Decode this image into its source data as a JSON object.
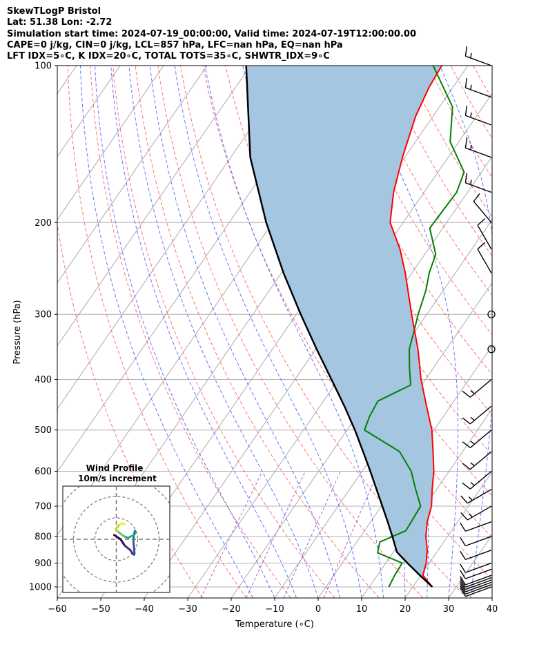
{
  "header": {
    "title": "SkewTLogP Bristol",
    "location": "Lat: 51.38   Lon: -2.72",
    "times": "Simulation start time: 2024-07-19_00:00:00, Valid time: 2024-07-19T12:00:00.00",
    "parcel": "CAPE=0 j/kg, CIN=0 j/kg, LCL=857 hPa, LFC=nan hPa, EQ=nan hPa",
    "indices": "LFT IDX=5∘C, K IDX=20∘C, TOTAL TOTS=35∘C, SHWTR_IDX=9∘C"
  },
  "colors": {
    "temperature": "#ff0000",
    "dewpoint": "#008000",
    "parcel": "#000000",
    "cape_fill": "#a4c6e0",
    "isotherm": "#aaaaaa",
    "dry_adiabat": "#ff5a5a",
    "moist_adiabat": "#4d5cff",
    "mixing_ratio": "#9b3fc4",
    "grid": "#b0b0b0"
  },
  "chart_data": [
    {
      "type": "line",
      "subtype": "skew-t log-p",
      "xlabel": "Temperature (∘C)",
      "ylabel": "Pressure (hPa)",
      "xlim": [
        -60,
        40
      ],
      "ylim": [
        1050,
        100
      ],
      "y_scale": "log",
      "x_ticks": [
        -60,
        -50,
        -40,
        -30,
        -20,
        -10,
        0,
        10,
        20,
        30,
        40
      ],
      "y_ticks": [
        100,
        200,
        300,
        400,
        500,
        600,
        700,
        800,
        900,
        1000
      ],
      "grid": true,
      "series": [
        {
          "key": "temperature",
          "pressure": [
            1000,
            950,
            900,
            850,
            800,
            750,
            700,
            650,
            600,
            550,
            500,
            450,
            400,
            350,
            300,
            250,
            225,
            200,
            175,
            150,
            125,
            110,
            100
          ],
          "temp_c": [
            24.5,
            20.5,
            19.3,
            17.5,
            15.0,
            13.0,
            11.5,
            9.0,
            6.5,
            3.2,
            -0.5,
            -5.5,
            -11.0,
            -16.5,
            -23.5,
            -31.5,
            -36.5,
            -43.0,
            -47.0,
            -50.5,
            -54.0,
            -55.5,
            -56.0
          ]
        },
        {
          "key": "dewpoint",
          "pressure": [
            1000,
            950,
            900,
            860,
            820,
            780,
            700,
            650,
            600,
            550,
            500,
            470,
            440,
            410,
            380,
            350,
            320,
            300,
            270,
            250,
            230,
            205,
            175,
            160,
            140,
            120,
            100
          ],
          "temp_c": [
            14.5,
            14.0,
            13.8,
            6.5,
            5.3,
            9.5,
            9.0,
            5.2,
            1.3,
            -4.5,
            -16.0,
            -17.0,
            -17.5,
            -12.5,
            -15.5,
            -18.5,
            -20.5,
            -22.0,
            -24.0,
            -26.0,
            -27.5,
            -33.0,
            -32.5,
            -34.0,
            -42.0,
            -47.0,
            -58.0
          ]
        },
        {
          "key": "parcel",
          "pressure": [
            1000,
            950,
            900,
            857,
            800,
            750,
            700,
            650,
            600,
            550,
            500,
            450,
            400,
            350,
            300,
            250,
            200,
            150,
            100
          ],
          "temp_c": [
            24.5,
            19.8,
            15.0,
            10.8,
            7.3,
            3.9,
            0.2,
            -3.8,
            -8.1,
            -12.9,
            -18.2,
            -24.4,
            -31.6,
            -39.8,
            -49.0,
            -59.5,
            -71.5,
            -85.5,
            -101.0
          ]
        }
      ],
      "wind_barbs": {
        "pressure": [
          1000,
          990,
          980,
          970,
          960,
          950,
          925,
          900,
          850,
          800,
          750,
          700,
          650,
          600,
          550,
          500,
          450,
          400,
          350,
          300,
          250,
          225,
          200,
          175,
          150,
          130,
          115,
          100
        ],
        "speed_kt": [
          10,
          10,
          10,
          10,
          10,
          10,
          10,
          10,
          10,
          10,
          10,
          15,
          15,
          15,
          15,
          15,
          15,
          15,
          0,
          0,
          10,
          10,
          10,
          15,
          15,
          15,
          15,
          15
        ],
        "direction_deg": [
          250,
          250,
          250,
          250,
          250,
          250,
          250,
          250,
          250,
          250,
          250,
          240,
          240,
          230,
          230,
          230,
          230,
          230,
          0,
          0,
          330,
          330,
          320,
          290,
          290,
          290,
          290,
          290
        ]
      }
    },
    {
      "type": "scatter",
      "subtype": "hodograph",
      "title": "Wind Profile",
      "subtitle": "10m/s increment",
      "range": [
        -25,
        25
      ],
      "ring_values": [
        10,
        20,
        30
      ],
      "u": [
        -1.0,
        2.0,
        4.0,
        6.5,
        7.5,
        8.2,
        8.5,
        8.3,
        8.0,
        8.1,
        8.5,
        8.7,
        9.0,
        8.8,
        8.3,
        7.8,
        5.5,
        4.5,
        3.5,
        2.5,
        1.5,
        0.5,
        -0.3,
        0.7,
        1.7,
        2.7,
        3.8
      ],
      "v": [
        2.0,
        0.0,
        -3.0,
        -5.0,
        -6.5,
        -7.2,
        -6.8,
        -4.0,
        -1.0,
        1.2,
        3.2,
        4.0,
        3.5,
        2.8,
        2.2,
        1.8,
        0.7,
        1.0,
        1.5,
        2.2,
        3.0,
        3.8,
        4.5,
        6.0,
        7.0,
        7.5,
        7.0
      ]
    }
  ]
}
